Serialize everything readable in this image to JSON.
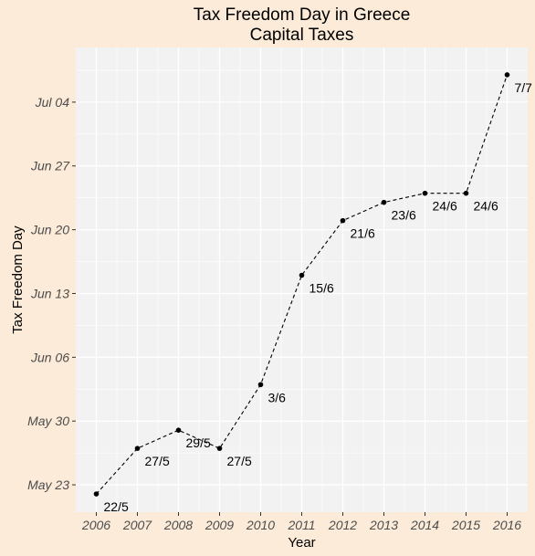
{
  "chart_data": {
    "type": "line",
    "title": "Tax Freedom Day in Greece",
    "subtitle": "Capital Taxes",
    "xlabel": "Year",
    "ylabel": "Tax Freedom Day",
    "x": [
      2006,
      2007,
      2008,
      2009,
      2010,
      2011,
      2012,
      2013,
      2014,
      2015,
      2016
    ],
    "y": [
      "2000-05-22",
      "2000-05-27",
      "2000-05-29",
      "2000-05-27",
      "2000-06-03",
      "2000-06-15",
      "2000-06-21",
      "2000-06-23",
      "2000-06-24",
      "2000-06-24",
      "2000-07-07"
    ],
    "labels": [
      "22/5",
      "27/5",
      "29/5",
      "27/5",
      "3/6",
      "15/6",
      "21/6",
      "23/6",
      "24/6",
      "24/6",
      "7/7"
    ],
    "x_ticks": [
      2006,
      2007,
      2008,
      2009,
      2010,
      2011,
      2012,
      2013,
      2014,
      2015,
      2016
    ],
    "y_ticks": [
      {
        "date": "2000-05-23",
        "label": "May 23"
      },
      {
        "date": "2000-05-30",
        "label": "May 30"
      },
      {
        "date": "2000-06-06",
        "label": "Jun 06"
      },
      {
        "date": "2000-06-13",
        "label": "Jun 13"
      },
      {
        "date": "2000-06-20",
        "label": "Jun 20"
      },
      {
        "date": "2000-06-27",
        "label": "Jun 27"
      },
      {
        "date": "2000-07-04",
        "label": "Jul 04"
      }
    ],
    "xlim": [
      2005.5,
      2016.5
    ],
    "ylim": [
      "2000-05-20",
      "2000-07-10"
    ],
    "line_style": "dashed",
    "grid": true,
    "colors": {
      "background": "#fbebd8",
      "panel": "#f2f2f2",
      "grid": "#ffffff",
      "line": "#000000"
    }
  }
}
